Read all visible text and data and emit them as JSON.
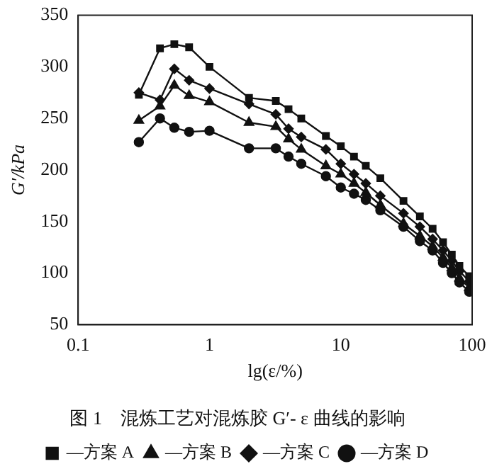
{
  "chart_data": {
    "type": "line",
    "title": "图 1　混炼工艺对混炼胶 G′- ε 曲线的影响",
    "xlabel": "lg(ε/%)",
    "ylabel": "G′/kPa",
    "log": "x",
    "xlim": [
      0.1,
      100
    ],
    "xticks": [
      0.1,
      1,
      10,
      100
    ],
    "ylim": [
      50,
      350
    ],
    "yticks": [
      50,
      100,
      150,
      200,
      250,
      300,
      350
    ],
    "grid": false,
    "legend": "bottom",
    "line_style": "solid",
    "x": [
      0.29,
      0.42,
      0.54,
      0.7,
      1,
      2,
      3.2,
      4,
      5,
      7.7,
      10,
      12.6,
      15.5,
      20,
      30,
      40,
      50,
      60,
      70,
      80,
      95
    ],
    "series": [
      {
        "name": "—方案 A",
        "color": "#111111",
        "marker": "square",
        "values": [
          273,
          318,
          322,
          319,
          300,
          270,
          267,
          259,
          250,
          233,
          223,
          213,
          204,
          192,
          170,
          155,
          143,
          130,
          118,
          107,
          97
        ]
      },
      {
        "name": "—方案 B",
        "color": "#111111",
        "marker": "triangle",
        "values": [
          248,
          262,
          282,
          272,
          266,
          246,
          242,
          230,
          220,
          204,
          196,
          187,
          178,
          166,
          148,
          136,
          126,
          115,
          105,
          95,
          86
        ]
      },
      {
        "name": "—方案 C",
        "color": "#111111",
        "marker": "diamond",
        "values": [
          275,
          268,
          298,
          287,
          279,
          264,
          254,
          240,
          232,
          220,
          206,
          196,
          187,
          175,
          158,
          145,
          133,
          122,
          112,
          102,
          92
        ]
      },
      {
        "name": "—方案 D",
        "color": "#111111",
        "marker": "circle",
        "values": [
          227,
          250,
          241,
          237,
          238,
          221,
          221,
          213,
          206,
          194,
          183,
          177,
          171,
          161,
          145,
          131,
          122,
          110,
          100,
          91,
          82
        ]
      }
    ]
  }
}
